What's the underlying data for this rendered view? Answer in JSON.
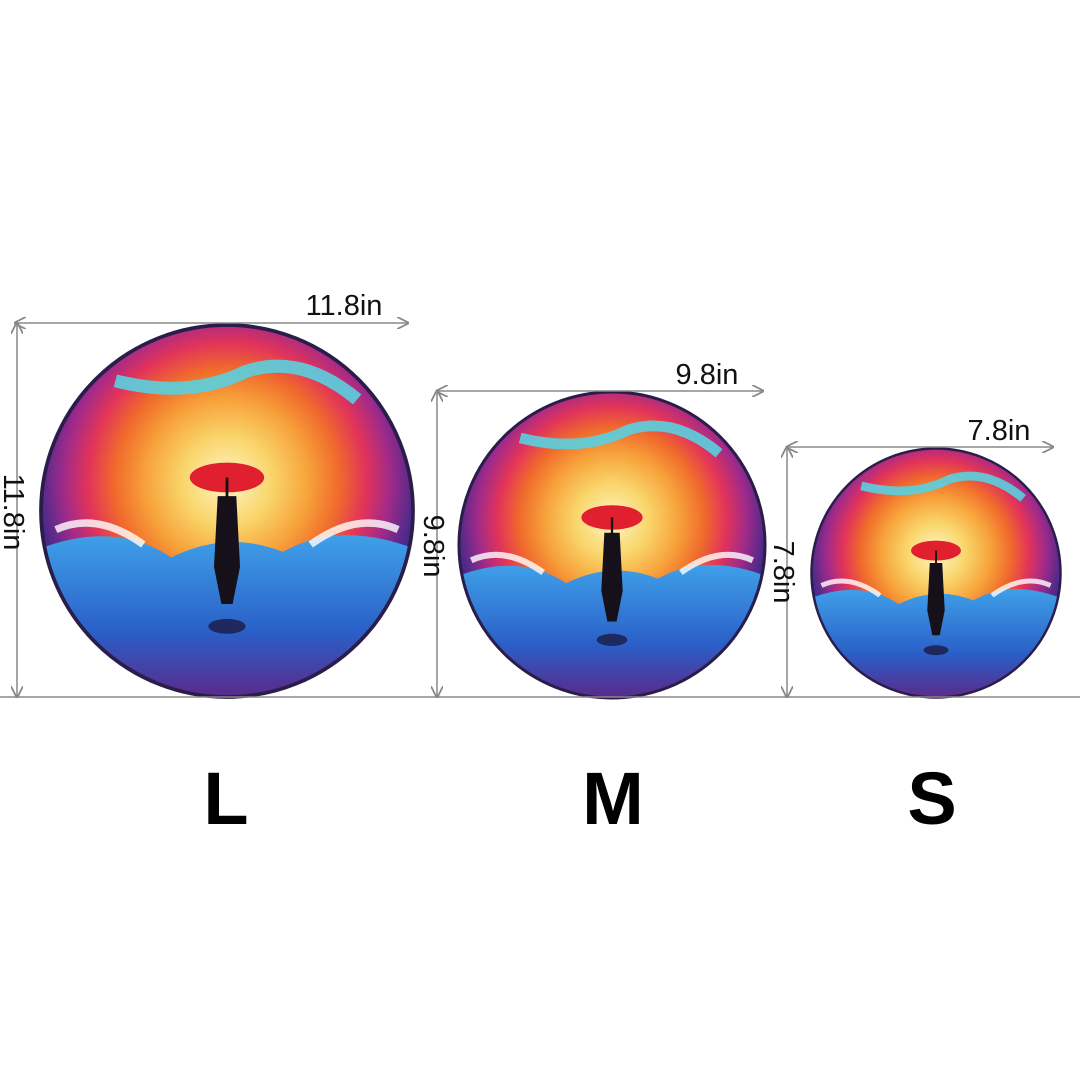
{
  "sizes": [
    {
      "label": "L",
      "width": "11.8in",
      "height": "11.8in"
    },
    {
      "label": "M",
      "width": "9.8in",
      "height": "9.8in"
    },
    {
      "label": "S",
      "width": "7.8in",
      "height": "7.8in"
    }
  ],
  "colors": {
    "dimension_line": "#888888",
    "ring_colors": [
      "#4a2a8a",
      "#7a2a8e",
      "#e2335a",
      "#f06a2c",
      "#f7a23a",
      "#f9d36a",
      "#fff2b0"
    ],
    "water": "#2a6fd0"
  }
}
